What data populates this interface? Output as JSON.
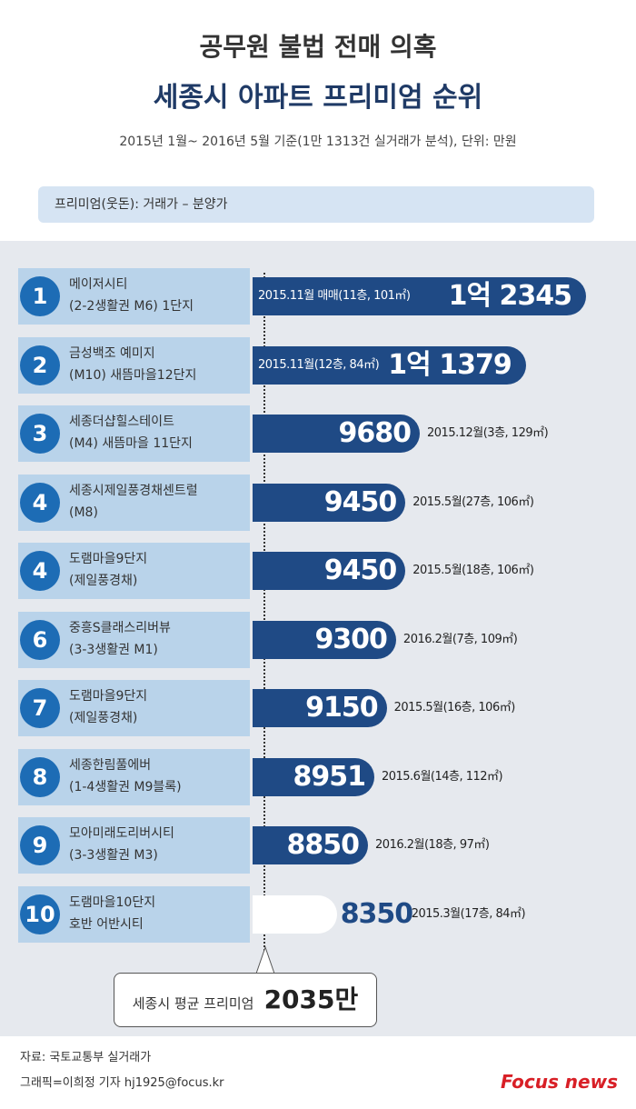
{
  "chart_data": {
    "type": "bar",
    "orientation": "horizontal",
    "title": "공무원 불법 전매 의혹",
    "subtitle": "세종시 아파트 프리미엄 순위",
    "note": "2015년 1월~ 2016년 5월 기준(1만 1313건 실거래가 분석), 단위: 만원",
    "legend_note": "프리미엄(웃돈): 거래가 – 분양가",
    "ranks": [
      "1",
      "2",
      "3",
      "4",
      "4",
      "6",
      "7",
      "8",
      "9",
      "10"
    ],
    "categories": [
      "메이저시티\n(2-2생활권 M6) 1단지",
      "금성백조 예미지\n(M10) 새뜸마을12단지",
      "세종더샵힐스테이트\n(M4) 새뜸마을 11단지",
      "세종시제일풍경채센트럴\n(M8)",
      "도램마을9단지\n(제일풍경채)",
      "중흥S클래스리버뷰\n(3-3생활권 M1)",
      "도램마을9단지\n(제일풍경채)",
      "세종한림풀에버\n(1-4생활권 M9블록)",
      "모아미래도리버시티\n(3-3생활권 M3)",
      "도램마을10단지\n호반 어반시티"
    ],
    "values": [
      12345,
      11379,
      9680,
      9450,
      9450,
      9300,
      9150,
      8951,
      8850,
      8350
    ],
    "value_labels": [
      "1억 2345",
      "1억 1379",
      "9680",
      "9450",
      "9450",
      "9300",
      "9150",
      "8951",
      "8850",
      "8350"
    ],
    "details": [
      "2015.11월 매매(11층, 101㎡)",
      "2015.11월(12층, 84㎡)",
      "2015.12월(3층, 129㎡)",
      "2015.5월(27층, 106㎡)",
      "2015.5월(18층, 106㎡)",
      "2016.2월(7층, 109㎡)",
      "2015.5월(16층, 106㎡)",
      "2015.6월(14층, 112㎡)",
      "2016.2월(18층, 97㎡)",
      "2015.3월(17층, 84㎡)"
    ],
    "colors": [
      "#1f4a85",
      "#1f4a85",
      "#1f4a85",
      "#1f4a85",
      "#1f4a85",
      "#1f4a85",
      "#1f4a85",
      "#1f4a85",
      "#1f4a85",
      "#ffffff"
    ],
    "xlim": [
      7000,
      13000
    ],
    "average": {
      "label": "세종시 평균 프리미엄",
      "value_label": "2035만"
    },
    "source": "자료: 국토교통부 실거래가",
    "credit": "그래픽=이희정 기자 hj1925@focus.kr",
    "logo": "Focus news"
  }
}
